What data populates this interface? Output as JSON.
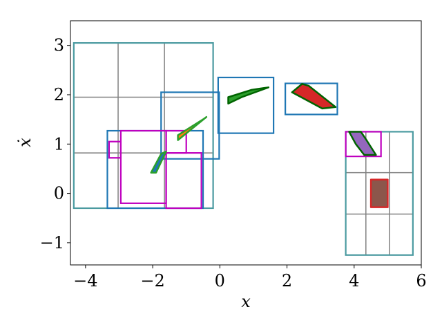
{
  "chart_data": {
    "type": "scatter",
    "title": "",
    "xlabel": "x",
    "ylabel": "ẋ",
    "xlim": [
      -4.45,
      6.0
    ],
    "ylim": [
      -1.45,
      3.5
    ],
    "x_ticks": [
      -4,
      -2,
      0,
      2,
      4,
      6
    ],
    "x_tick_labels": [
      "−4",
      "−2",
      "0",
      "2",
      "4",
      "6"
    ],
    "y_ticks": [
      -1,
      0,
      1,
      2,
      3
    ],
    "y_tick_labels": [
      "−1",
      "0",
      "1",
      "2",
      "3"
    ],
    "grid_lines": [
      {
        "x1": -3.03,
        "y1": 3.05,
        "x2": -3.03,
        "y2": -0.3
      },
      {
        "x1": -1.65,
        "y1": 3.05,
        "x2": -1.65,
        "y2": -0.3
      },
      {
        "x1": -4.35,
        "y1": 1.95,
        "x2": -0.2,
        "y2": 1.95
      },
      {
        "x1": -4.35,
        "y1": 0.82,
        "x2": -0.2,
        "y2": 0.82
      },
      {
        "x1": 4.35,
        "y1": 1.25,
        "x2": 4.35,
        "y2": -1.25
      },
      {
        "x1": 5.05,
        "y1": 1.25,
        "x2": 5.05,
        "y2": -1.25
      },
      {
        "x1": 3.75,
        "y1": 0.42,
        "x2": 5.75,
        "y2": 0.42
      },
      {
        "x1": 3.75,
        "y1": -0.42,
        "x2": 5.75,
        "y2": -0.42
      }
    ],
    "boxes": [
      {
        "x0": -4.35,
        "y0": -0.3,
        "x1": -0.2,
        "y1": 3.05,
        "color": "#4a9aa0"
      },
      {
        "x0": 3.75,
        "y0": -1.25,
        "x1": 5.75,
        "y1": 1.25,
        "color": "#4a9aa0"
      },
      {
        "x0": -1.75,
        "y0": 0.7,
        "x1": -0.02,
        "y1": 2.05,
        "color": "#1f77b4"
      },
      {
        "x0": -3.35,
        "y0": -0.3,
        "x1": -0.5,
        "y1": 1.27,
        "color": "#1f77b4"
      },
      {
        "x0": -0.05,
        "y0": 1.22,
        "x1": 1.6,
        "y1": 2.35,
        "color": "#1f77b4"
      },
      {
        "x0": 1.95,
        "y0": 1.6,
        "x1": 3.5,
        "y1": 2.23,
        "color": "#1f77b4"
      },
      {
        "x0": -3.3,
        "y0": 0.72,
        "x1": -2.95,
        "y1": 1.05,
        "color": "#bf00bf"
      },
      {
        "x0": -2.95,
        "y0": -0.2,
        "x1": -1.6,
        "y1": 1.27,
        "color": "#bf00bf"
      },
      {
        "x0": -1.6,
        "y0": -0.3,
        "x1": -0.55,
        "y1": 0.82,
        "color": "#bf00bf"
      },
      {
        "x0": -1.6,
        "y0": 0.82,
        "x1": -1.0,
        "y1": 1.27,
        "color": "#bf00bf"
      },
      {
        "x0": 3.75,
        "y0": 0.75,
        "x1": 4.8,
        "y1": 1.25,
        "color": "#bf00bf"
      }
    ],
    "series": [
      {
        "fill": "#1f77b4",
        "edge": "#2ca02c",
        "points": [
          [
            -1.6,
            0.85
          ],
          [
            -1.9,
            0.42
          ],
          [
            -2.05,
            0.42
          ],
          [
            -1.75,
            0.8
          ]
        ]
      },
      {
        "fill": "#ff7f0e",
        "edge": "#2ca02c",
        "points": [
          [
            -0.4,
            1.55
          ],
          [
            -1.25,
            1.08
          ],
          [
            -1.25,
            1.18
          ],
          [
            -0.5,
            1.5
          ]
        ]
      },
      {
        "fill": "#2ca02c",
        "edge": "#006400",
        "points": [
          [
            0.25,
            1.95
          ],
          [
            0.95,
            2.1
          ],
          [
            1.45,
            2.15
          ],
          [
            0.65,
            1.95
          ],
          [
            0.25,
            1.82
          ]
        ]
      },
      {
        "fill": "#d62728",
        "edge": "#006400",
        "points": [
          [
            2.15,
            2.05
          ],
          [
            2.45,
            2.22
          ],
          [
            2.65,
            2.18
          ],
          [
            3.45,
            1.75
          ],
          [
            3.05,
            1.72
          ]
        ]
      },
      {
        "fill": "#9467bd",
        "edge": "#006400",
        "points": [
          [
            3.85,
            1.25
          ],
          [
            4.2,
            1.25
          ],
          [
            4.35,
            1.1
          ],
          [
            4.65,
            0.78
          ],
          [
            4.3,
            0.78
          ],
          [
            4.05,
            1.0
          ]
        ]
      },
      {
        "fill": "#8c564b",
        "edge": "#d62728",
        "points": [
          [
            4.5,
            0.28
          ],
          [
            5.0,
            0.28
          ],
          [
            5.0,
            -0.28
          ],
          [
            4.5,
            -0.28
          ]
        ]
      }
    ]
  }
}
